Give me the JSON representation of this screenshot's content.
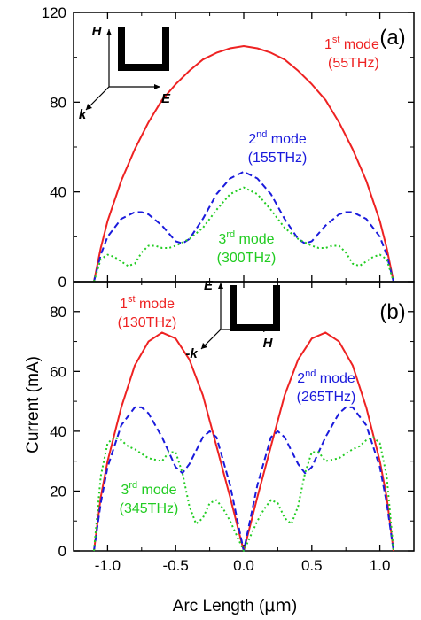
{
  "figure": {
    "ylabel": "Current (mA)",
    "xlabel_prefix": "Arc Length (",
    "xlabel_unit": "μm",
    "xlabel_suffix": ")"
  },
  "colors": {
    "mode1": "#ee2222",
    "mode2": "#1a1adc",
    "mode3": "#22cc22"
  },
  "chart_data": [
    {
      "type": "line",
      "panel": "(a)",
      "xlabel": "",
      "ylabel": "Current (mA)",
      "xlim": [
        -1.25,
        1.25
      ],
      "ylim": [
        0,
        120
      ],
      "yticks": [
        0,
        40,
        80,
        120
      ],
      "xticks": [],
      "inset": {
        "field_vertical": "H",
        "field_horizontal": "E",
        "wave_vector": "k"
      },
      "series": [
        {
          "name": "1st mode (55THz)",
          "label_main": "1",
          "label_sup": "st",
          "label_rest": " mode",
          "freq": "(55THz)",
          "style": "solid",
          "color": "#ee2222",
          "x": [
            -1.1,
            -1.05,
            -1.0,
            -0.9,
            -0.8,
            -0.7,
            -0.6,
            -0.5,
            -0.4,
            -0.3,
            -0.2,
            -0.1,
            0.0,
            0.1,
            0.2,
            0.3,
            0.4,
            0.5,
            0.6,
            0.7,
            0.8,
            0.9,
            1.0,
            1.05,
            1.1
          ],
          "y": [
            0,
            15,
            27,
            45,
            59,
            71,
            81,
            88,
            94,
            99,
            102,
            104,
            105,
            104,
            102,
            99,
            94,
            88,
            81,
            71,
            59,
            45,
            27,
            15,
            0
          ]
        },
        {
          "name": "2nd mode (155THz)",
          "label_main": "2",
          "label_sup": "nd",
          "label_rest": " mode",
          "freq": "(155THz)",
          "style": "dashed",
          "color": "#1a1adc",
          "x": [
            -1.1,
            -1.05,
            -1.0,
            -0.9,
            -0.8,
            -0.75,
            -0.7,
            -0.6,
            -0.5,
            -0.45,
            -0.4,
            -0.3,
            -0.2,
            -0.1,
            0.0,
            0.1,
            0.2,
            0.3,
            0.4,
            0.45,
            0.5,
            0.6,
            0.7,
            0.75,
            0.8,
            0.9,
            1.0,
            1.05,
            1.1
          ],
          "y": [
            0,
            12,
            20,
            28,
            31,
            31,
            30,
            25,
            18,
            17,
            19,
            28,
            39,
            46,
            49,
            46,
            39,
            28,
            19,
            17,
            18,
            25,
            30,
            31,
            31,
            28,
            20,
            12,
            0
          ]
        },
        {
          "name": "3rd mode (300THz)",
          "label_main": "3",
          "label_sup": "rd",
          "label_rest": " mode",
          "freq": "(300THz)",
          "style": "dotted",
          "color": "#22cc22",
          "x": [
            -1.1,
            -1.05,
            -1.0,
            -0.95,
            -0.9,
            -0.85,
            -0.8,
            -0.75,
            -0.7,
            -0.65,
            -0.6,
            -0.55,
            -0.5,
            -0.4,
            -0.3,
            -0.2,
            -0.1,
            0.0,
            0.1,
            0.2,
            0.3,
            0.4,
            0.5,
            0.55,
            0.6,
            0.65,
            0.7,
            0.75,
            0.8,
            0.85,
            0.9,
            0.95,
            1.0,
            1.05,
            1.1
          ],
          "y": [
            0,
            10,
            12,
            11,
            9,
            7,
            8,
            13,
            16,
            16,
            15,
            15,
            16,
            19,
            24,
            32,
            39,
            42,
            39,
            32,
            24,
            19,
            16,
            15,
            15,
            16,
            16,
            13,
            8,
            7,
            9,
            11,
            12,
            10,
            0
          ]
        }
      ]
    },
    {
      "type": "line",
      "panel": "(b)",
      "xlabel": "Arc Length (μm)",
      "ylabel": "Current (mA)",
      "xlim": [
        -1.25,
        1.25
      ],
      "ylim": [
        0,
        90
      ],
      "yticks": [
        0,
        20,
        40,
        60,
        80
      ],
      "xticks": [
        -1.0,
        -0.5,
        0.0,
        0.5,
        1.0
      ],
      "xtick_labels": [
        "-1.0",
        "-0.5",
        "0.0",
        "0.5",
        "1.0"
      ],
      "inset": {
        "field_vertical": "E",
        "field_horizontal": "H",
        "wave_vector": "-k"
      },
      "series": [
        {
          "name": "1st mode (130THz)",
          "label_main": "1",
          "label_sup": "st",
          "label_rest": " mode",
          "freq": "(130THz)",
          "style": "solid",
          "color": "#ee2222",
          "x": [
            -1.1,
            -1.05,
            -1.0,
            -0.9,
            -0.8,
            -0.7,
            -0.6,
            -0.5,
            -0.4,
            -0.3,
            -0.2,
            -0.1,
            0.0,
            0.1,
            0.2,
            0.3,
            0.4,
            0.5,
            0.6,
            0.7,
            0.8,
            0.9,
            1.0,
            1.05,
            1.1
          ],
          "y": [
            0,
            18,
            30,
            48,
            62,
            70,
            73,
            71,
            64,
            52,
            35,
            18,
            0,
            18,
            35,
            52,
            64,
            71,
            73,
            70,
            62,
            48,
            30,
            18,
            0
          ]
        },
        {
          "name": "2nd mode (265THz)",
          "label_main": "2",
          "label_sup": "nd",
          "label_rest": " mode",
          "freq": "(265THz)",
          "style": "dashed",
          "color": "#1a1adc",
          "x": [
            -1.1,
            -1.05,
            -1.0,
            -0.9,
            -0.8,
            -0.75,
            -0.7,
            -0.6,
            -0.5,
            -0.45,
            -0.4,
            -0.3,
            -0.25,
            -0.2,
            -0.1,
            0.0,
            0.1,
            0.2,
            0.25,
            0.3,
            0.4,
            0.45,
            0.5,
            0.6,
            0.7,
            0.75,
            0.8,
            0.9,
            1.0,
            1.05,
            1.1
          ],
          "y": [
            0,
            16,
            28,
            42,
            48,
            48,
            46,
            38,
            28,
            26,
            29,
            38,
            40,
            38,
            22,
            0,
            22,
            38,
            40,
            38,
            29,
            26,
            28,
            38,
            46,
            48,
            48,
            42,
            28,
            16,
            0
          ]
        },
        {
          "name": "3rd mode (345THz)",
          "label_main": "3",
          "label_sup": "rd",
          "label_rest": " mode",
          "freq": "(345THz)",
          "style": "dotted",
          "color": "#22cc22",
          "x": [
            -1.1,
            -1.05,
            -1.0,
            -0.95,
            -0.9,
            -0.85,
            -0.8,
            -0.7,
            -0.6,
            -0.55,
            -0.5,
            -0.45,
            -0.4,
            -0.35,
            -0.3,
            -0.25,
            -0.2,
            -0.15,
            -0.1,
            0.0,
            0.1,
            0.15,
            0.2,
            0.25,
            0.3,
            0.35,
            0.4,
            0.45,
            0.5,
            0.55,
            0.6,
            0.7,
            0.8,
            0.85,
            0.9,
            0.95,
            1.0,
            1.05,
            1.1
          ],
          "y": [
            0,
            25,
            36,
            38,
            37,
            35,
            34,
            31,
            30,
            33,
            33,
            26,
            15,
            9,
            11,
            16,
            17,
            14,
            10,
            0,
            10,
            14,
            17,
            16,
            11,
            9,
            15,
            26,
            33,
            33,
            30,
            31,
            34,
            35,
            37,
            38,
            36,
            25,
            0
          ]
        }
      ]
    }
  ]
}
